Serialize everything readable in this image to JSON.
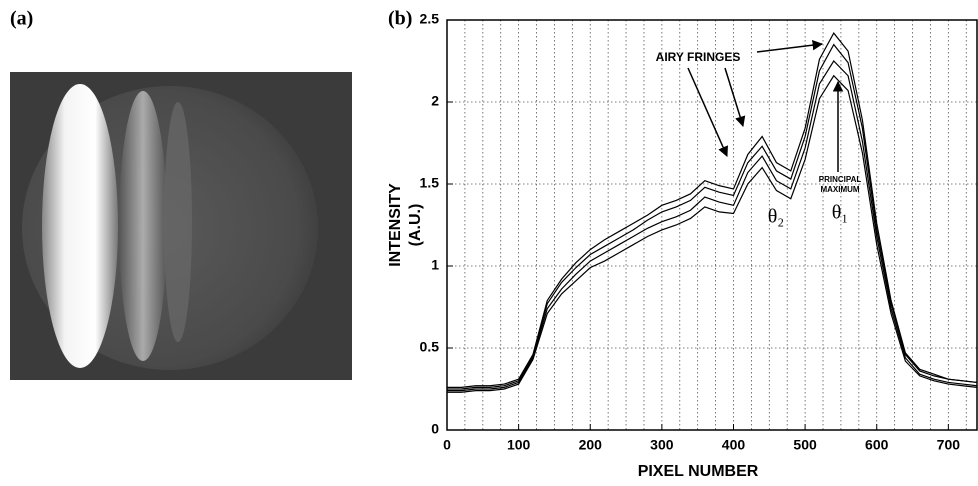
{
  "panels": [
    "(a)",
    "(b)"
  ],
  "chart_data": {
    "type": "line",
    "xlabel": "PIXEL NUMBER",
    "ylabel": [
      "INTENSITY",
      "(A.U.)"
    ],
    "annotations": [
      "AIRY FRINGES",
      "PRINCIPAL",
      "MAXIMUM",
      "θ₂",
      "θ₁"
    ],
    "x": [
      0,
      20,
      40,
      60,
      80,
      100,
      120,
      140,
      160,
      180,
      200,
      220,
      240,
      260,
      280,
      300,
      320,
      340,
      360,
      380,
      400,
      420,
      440,
      460,
      480,
      500,
      520,
      540,
      560,
      580,
      600,
      620,
      640,
      660,
      680,
      700,
      720,
      740
    ],
    "series": [
      {
        "color": "#000000",
        "values": [
          0.26,
          0.26,
          0.27,
          0.27,
          0.28,
          0.31,
          0.46,
          0.79,
          0.92,
          1.02,
          1.1,
          1.16,
          1.21,
          1.26,
          1.31,
          1.37,
          1.4,
          1.44,
          1.52,
          1.49,
          1.47,
          1.68,
          1.79,
          1.63,
          1.58,
          1.84,
          2.26,
          2.42,
          2.31,
          1.89,
          1.26,
          0.79,
          0.47,
          0.37,
          0.34,
          0.31,
          0.3,
          0.29
        ]
      },
      {
        "color": "#000000",
        "values": [
          0.25,
          0.25,
          0.26,
          0.26,
          0.27,
          0.3,
          0.45,
          0.77,
          0.9,
          0.99,
          1.07,
          1.12,
          1.17,
          1.22,
          1.28,
          1.33,
          1.36,
          1.4,
          1.48,
          1.45,
          1.43,
          1.63,
          1.73,
          1.58,
          1.53,
          1.79,
          2.19,
          2.35,
          2.24,
          1.84,
          1.22,
          0.77,
          0.46,
          0.36,
          0.33,
          0.31,
          0.3,
          0.29
        ]
      },
      {
        "color": "#000000",
        "values": [
          0.24,
          0.24,
          0.25,
          0.25,
          0.26,
          0.29,
          0.44,
          0.74,
          0.86,
          0.95,
          1.03,
          1.08,
          1.13,
          1.18,
          1.23,
          1.27,
          1.3,
          1.34,
          1.42,
          1.39,
          1.37,
          1.57,
          1.67,
          1.52,
          1.47,
          1.72,
          2.11,
          2.25,
          2.16,
          1.76,
          1.18,
          0.74,
          0.44,
          0.34,
          0.31,
          0.29,
          0.28,
          0.27
        ]
      },
      {
        "color": "#000000",
        "values": [
          0.23,
          0.23,
          0.24,
          0.24,
          0.25,
          0.28,
          0.43,
          0.71,
          0.83,
          0.91,
          0.99,
          1.03,
          1.08,
          1.13,
          1.18,
          1.22,
          1.25,
          1.29,
          1.36,
          1.33,
          1.32,
          1.5,
          1.6,
          1.46,
          1.41,
          1.65,
          2.02,
          2.16,
          2.07,
          1.69,
          1.13,
          0.71,
          0.42,
          0.33,
          0.3,
          0.28,
          0.27,
          0.26
        ]
      }
    ],
    "xlim": [
      0,
      740
    ],
    "ylim": [
      0,
      2.5
    ],
    "xticks": [
      0,
      100,
      200,
      300,
      400,
      500,
      600,
      700
    ],
    "xminorticks": [
      25,
      50,
      75,
      125,
      150,
      175,
      225,
      250,
      275,
      325,
      350,
      375,
      425,
      450,
      475,
      525,
      550,
      575,
      625,
      650,
      675,
      725
    ],
    "yticks": [
      0,
      0.5,
      1,
      1.5,
      2,
      2.5
    ],
    "grid": true
  }
}
